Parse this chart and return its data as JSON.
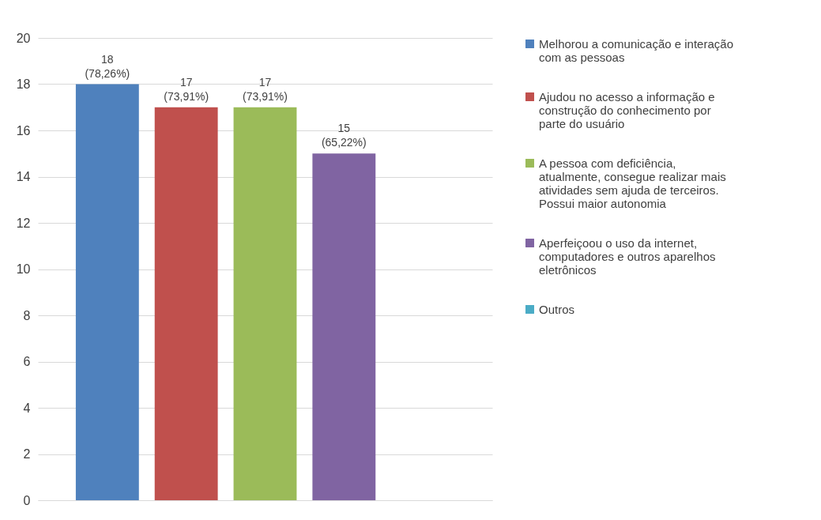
{
  "chart_data": {
    "type": "bar",
    "categories": [
      null
    ],
    "series": [
      {
        "name": "Melhorou a comunicação e interação com as pessoas",
        "color": "#4f81bd",
        "values": [
          18
        ],
        "value_labels": [
          "18 (78,26%)"
        ]
      },
      {
        "name": "Ajudou no acesso a informação e construção do conhecimento por parte do usuário",
        "color": "#c0504d",
        "values": [
          17
        ],
        "value_labels": [
          "17 (73,91%)"
        ]
      },
      {
        "name": "A pessoa com deficiência, atualmente, consegue realizar mais atividades sem ajuda de terceiros. Possui maior autonomia",
        "color": "#9bbb59",
        "values": [
          17
        ],
        "value_labels": [
          "17 (73,91%)"
        ]
      },
      {
        "name": "Aperfeiçoou o uso da internet, computadores e outros aparelhos eletrônicos",
        "color": "#8064a2",
        "values": [
          15
        ],
        "value_labels": [
          "15 (65,22%)"
        ]
      },
      {
        "name": "Outros",
        "color": "#4bacc6",
        "values": [
          0
        ],
        "value_labels": [
          null
        ]
      }
    ],
    "ylim": [
      0,
      20
    ],
    "yticks": [
      0,
      2,
      4,
      6,
      8,
      10,
      12,
      14,
      16,
      18,
      20
    ],
    "grid": "y",
    "legend": "right",
    "tick_labels": "y"
  }
}
